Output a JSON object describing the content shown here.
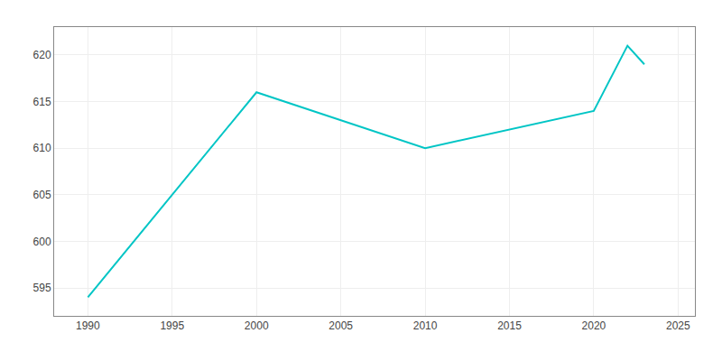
{
  "chart_data": {
    "type": "line",
    "x": [
      1990,
      2000,
      2010,
      2015,
      2020,
      2022,
      2023
    ],
    "values": [
      594,
      616,
      610,
      612,
      614,
      621,
      619
    ],
    "color": "#00C5C5",
    "xlim": [
      1988,
      2026
    ],
    "ylim": [
      592,
      623
    ],
    "xticks": [
      1990,
      1995,
      2000,
      2005,
      2010,
      2015,
      2020,
      2025
    ],
    "yticks": [
      595,
      600,
      605,
      610,
      615,
      620
    ],
    "grid": true
  }
}
